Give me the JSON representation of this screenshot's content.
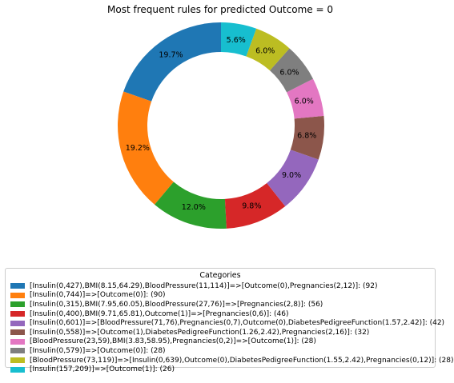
{
  "chart_data": {
    "type": "pie",
    "style": "donut",
    "title": "Most frequent rules for predicted Outcome = 0",
    "legend_title": "Categories",
    "legend_placement": "bottom",
    "start_angle_deg": 90,
    "direction": "counterclockwise",
    "slices": [
      {
        "label": "[Insulin(0,427),BMI(8.15,64.29),BloodPressure(11,114)]=>[Outcome(0),Pregnancies(2,12)]: (92)",
        "value": 92,
        "pct_label": "19.7%",
        "color": "#1f77b4"
      },
      {
        "label": "[Insulin(0,744)]=>[Outcome(0)]: (90)",
        "value": 90,
        "pct_label": "19.2%",
        "color": "#ff7f0e"
      },
      {
        "label": "[Insulin(0,315),BMI(7.95,60.05),BloodPressure(27,76)]=>[Pregnancies(2,8)]: (56)",
        "value": 56,
        "pct_label": "12.0%",
        "color": "#2ca02c"
      },
      {
        "label": "[Insulin(0,400),BMI(9.71,65.81),Outcome(1)]=>[Pregnancies(0,6)]: (46)",
        "value": 46,
        "pct_label": "9.8%",
        "color": "#d62728"
      },
      {
        "label": "[Insulin(0,601)]=>[BloodPressure(71,76),Pregnancies(0,7),Outcome(0),DiabetesPedigreeFunction(1.57,2.42)]: (42)",
        "value": 42,
        "pct_label": "9.0%",
        "color": "#9467bd"
      },
      {
        "label": "[Insulin(0,558)]=>[Outcome(1),DiabetesPedigreeFunction(1.26,2.42),Pregnancies(2,16)]: (32)",
        "value": 32,
        "pct_label": "6.8%",
        "color": "#8c564b"
      },
      {
        "label": "[BloodPressure(23,59),BMI(3.83,58.95),Pregnancies(0,2)]=>[Outcome(1)]: (28)",
        "value": 28,
        "pct_label": "6.0%",
        "color": "#e377c2"
      },
      {
        "label": "[Insulin(0,579)]=>[Outcome(0)]: (28)",
        "value": 28,
        "pct_label": "6.0%",
        "color": "#7f7f7f"
      },
      {
        "label": "[BloodPressure(73,119)]=>[Insulin(0,639),Outcome(0),DiabetesPedigreeFunction(1.55,2.42),Pregnancies(0,12)]: (28)",
        "value": 28,
        "pct_label": "6.0%",
        "color": "#bcbd22"
      },
      {
        "label": "[Insulin(157,209)]=>[Outcome(1)]: (26)",
        "value": 26,
        "pct_label": "5.6%",
        "color": "#17becf"
      }
    ]
  }
}
